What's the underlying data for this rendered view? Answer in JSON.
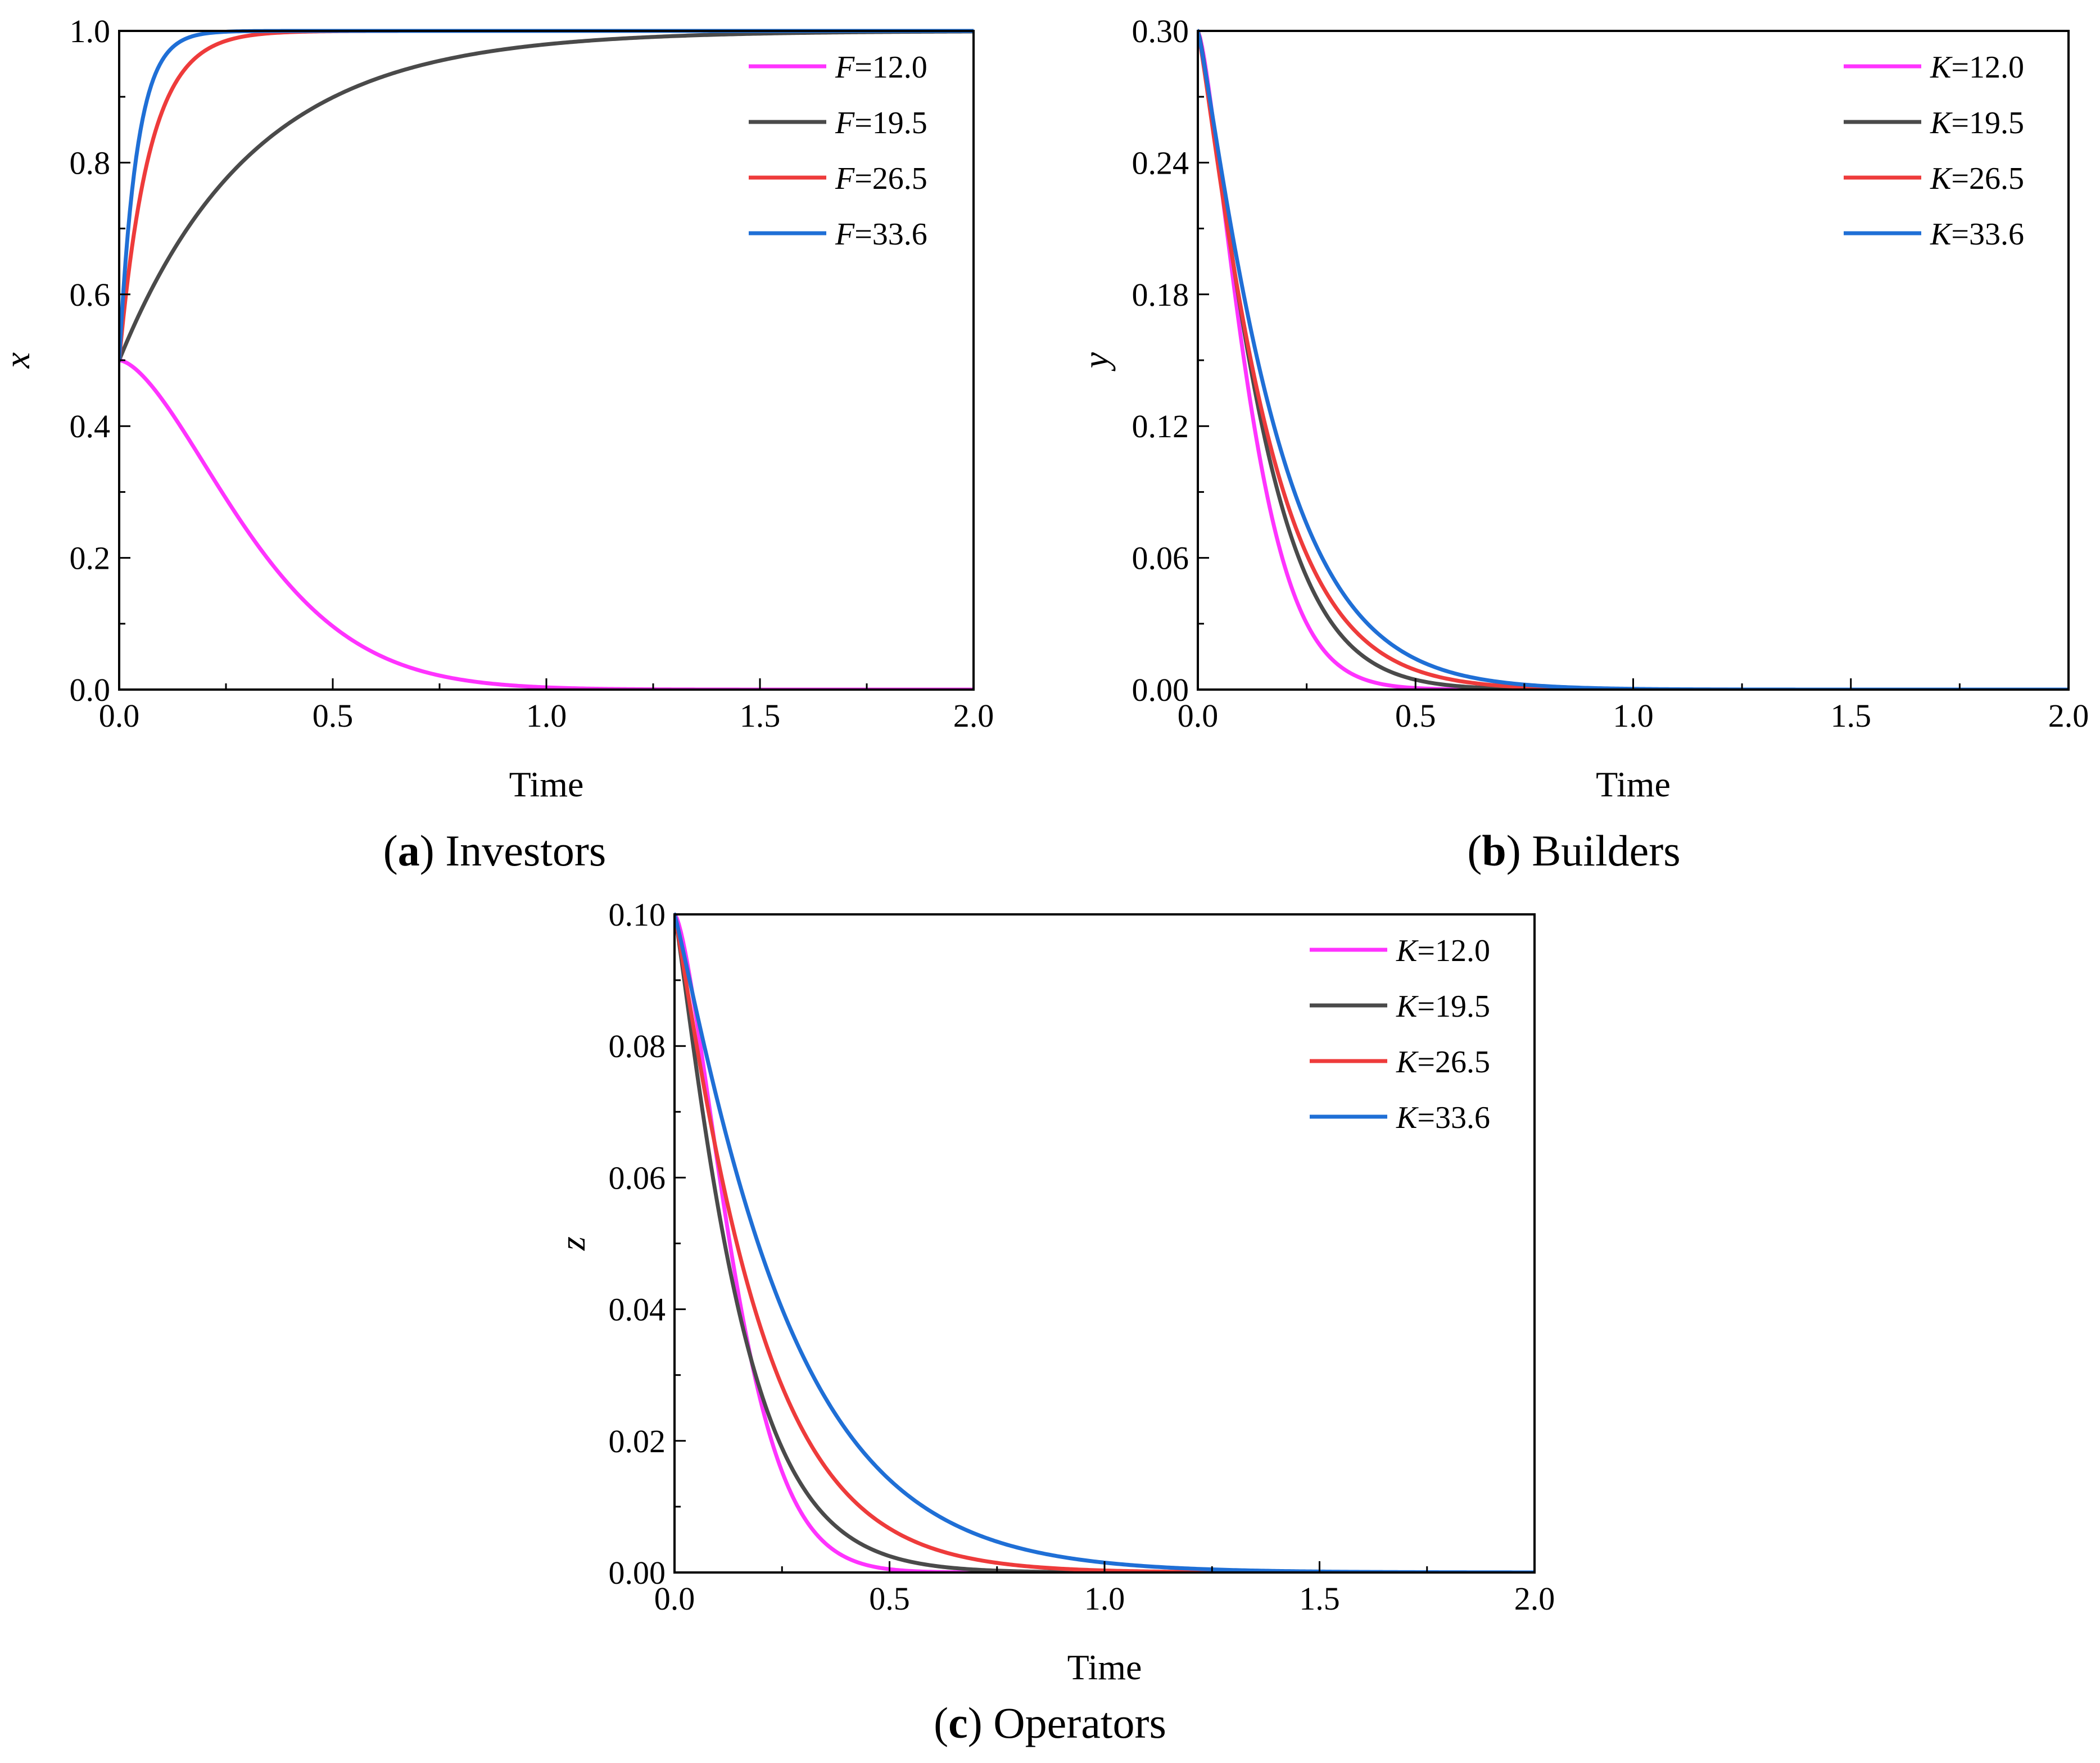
{
  "chart_data": [
    {
      "type": "line",
      "caption": {
        "letter": "a",
        "text": "Investors",
        "open": "(",
        "close": ")"
      },
      "xlabel": "Time",
      "ylabel": "x",
      "xlim": [
        0,
        2
      ],
      "ylim": [
        0,
        1
      ],
      "xticks": [
        "0.0",
        "0.5",
        "1.0",
        "1.5",
        "2.0"
      ],
      "yticks": [
        "0.0",
        "0.2",
        "0.4",
        "0.6",
        "0.8",
        "1.0"
      ],
      "legend_position": "top-right",
      "legend_var": "F",
      "series": [
        {
          "name": "F=12.0",
          "param": "=12.0",
          "color": "#ff33ff",
          "model": "decay",
          "y0": 0.5,
          "k": 5.0,
          "p": 1.6
        },
        {
          "name": "F=19.5",
          "param": "=19.5",
          "color": "#4a4a4a",
          "model": "rise",
          "y0": 0.5,
          "k": 3.2,
          "p": 1.0
        },
        {
          "name": "F=26.5",
          "param": "=26.5",
          "color": "#ee3b3b",
          "model": "rise",
          "y0": 0.5,
          "k": 14.0,
          "p": 1.0
        },
        {
          "name": "F=33.6",
          "param": "=33.6",
          "color": "#1f6fd6",
          "model": "rise",
          "y0": 0.5,
          "k": 24.0,
          "p": 1.0
        }
      ]
    },
    {
      "type": "line",
      "caption": {
        "letter": "b",
        "text": "Builders",
        "open": "(",
        "close": ")"
      },
      "xlabel": "Time",
      "ylabel": "y",
      "xlim": [
        0,
        2
      ],
      "ylim": [
        0,
        0.3
      ],
      "xticks": [
        "0.0",
        "0.5",
        "1.0",
        "1.5",
        "2.0"
      ],
      "yticks": [
        "0.00",
        "0.06",
        "0.12",
        "0.18",
        "0.24",
        "0.30"
      ],
      "legend_position": "top-right",
      "legend_var": "K",
      "series": [
        {
          "name": "K=12.0",
          "param": "=12.0",
          "color": "#ff33ff",
          "model": "decay",
          "y0": 0.3,
          "k": 16.0,
          "p": 1.4
        },
        {
          "name": "K=19.5",
          "param": "=19.5",
          "color": "#4a4a4a",
          "model": "decay",
          "y0": 0.3,
          "k": 10.0,
          "p": 1.25
        },
        {
          "name": "K=26.5",
          "param": "=26.5",
          "color": "#ee3b3b",
          "model": "decay",
          "y0": 0.3,
          "k": 7.8,
          "p": 1.15
        },
        {
          "name": "K=33.6",
          "param": "=33.6",
          "color": "#1f6fd6",
          "model": "decay",
          "y0": 0.3,
          "k": 6.8,
          "p": 1.15
        }
      ]
    },
    {
      "type": "line",
      "caption": {
        "letter": "c",
        "text": "Operators",
        "open": "(",
        "close": ")"
      },
      "xlabel": "Time",
      "ylabel": "z",
      "xlim": [
        0,
        2
      ],
      "ylim": [
        0,
        0.1
      ],
      "xticks": [
        "0.0",
        "0.5",
        "1.0",
        "1.5",
        "2.0"
      ],
      "yticks": [
        "0.00",
        "0.02",
        "0.04",
        "0.06",
        "0.08",
        "0.10"
      ],
      "legend_position": "top-right",
      "legend_var": "K",
      "series": [
        {
          "name": "K=12.0",
          "param": "=12.0",
          "color": "#ff33ff",
          "model": "decay",
          "y0": 0.1,
          "k": 15.0,
          "p": 1.5
        },
        {
          "name": "K=19.5",
          "param": "=19.5",
          "color": "#4a4a4a",
          "model": "decay",
          "y0": 0.1,
          "k": 8.2,
          "p": 1.15
        },
        {
          "name": "K=26.5",
          "param": "=26.5",
          "color": "#ee3b3b",
          "model": "decay",
          "y0": 0.1,
          "k": 5.8,
          "p": 1.1
        },
        {
          "name": "K=33.6",
          "param": "=33.6",
          "color": "#1f6fd6",
          "model": "decay",
          "y0": 0.1,
          "k": 4.2,
          "p": 1.1
        }
      ]
    }
  ]
}
